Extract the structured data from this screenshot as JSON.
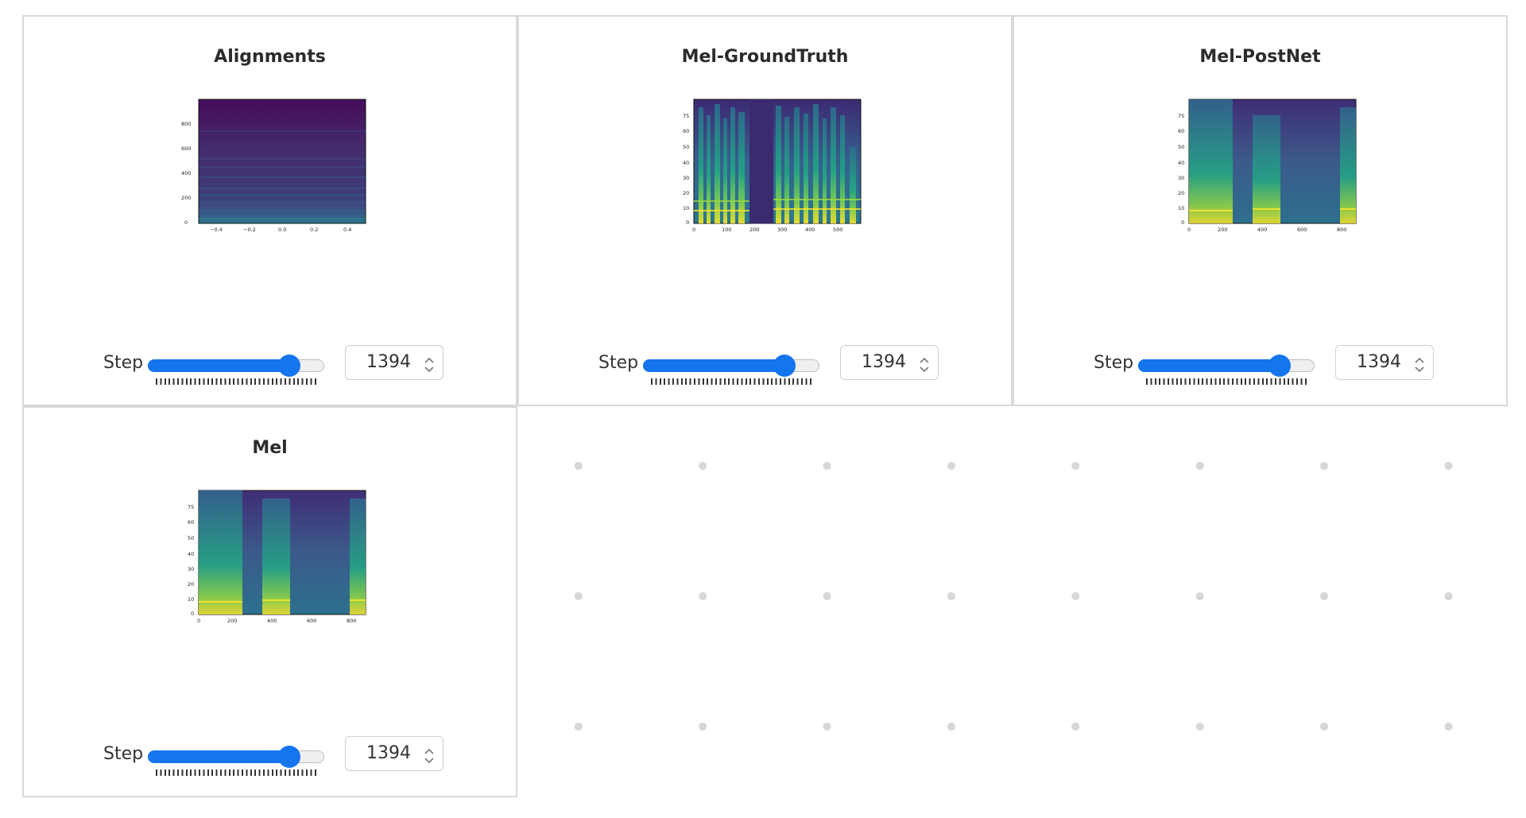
{
  "panels": [
    {
      "title": "Alignments",
      "step_label": "Step",
      "step_value": "1394",
      "slider_fraction": 0.88,
      "xticks": [
        "−0.4",
        "−0.2",
        "0.0",
        "0.2",
        "0.4"
      ],
      "yticks": [
        "0",
        "200",
        "400",
        "600",
        "800"
      ]
    },
    {
      "title": "Mel-GroundTruth",
      "step_label": "Step",
      "step_value": "1394",
      "slider_fraction": 0.88,
      "xticks": [
        "0",
        "100",
        "200",
        "300",
        "400",
        "500"
      ],
      "yticks": [
        "0",
        "10",
        "20",
        "30",
        "40",
        "50",
        "60",
        "75"
      ]
    },
    {
      "title": "Mel-PostNet",
      "step_label": "Step",
      "step_value": "1394",
      "slider_fraction": 0.88,
      "xticks": [
        "0",
        "200",
        "400",
        "600",
        "800"
      ],
      "yticks": [
        "0",
        "10",
        "20",
        "30",
        "40",
        "50",
        "60",
        "75"
      ]
    },
    {
      "title": "Mel",
      "step_label": "Step",
      "step_value": "1394",
      "slider_fraction": 0.88,
      "xticks": [
        "0",
        "200",
        "400",
        "600",
        "800"
      ],
      "yticks": [
        "0",
        "10",
        "20",
        "30",
        "40",
        "50",
        "60",
        "75"
      ]
    }
  ],
  "colors": {
    "accent": "#1475ee",
    "plot_dark": "#440154",
    "plot_mid": "#21918c",
    "plot_bright": "#fde725"
  }
}
